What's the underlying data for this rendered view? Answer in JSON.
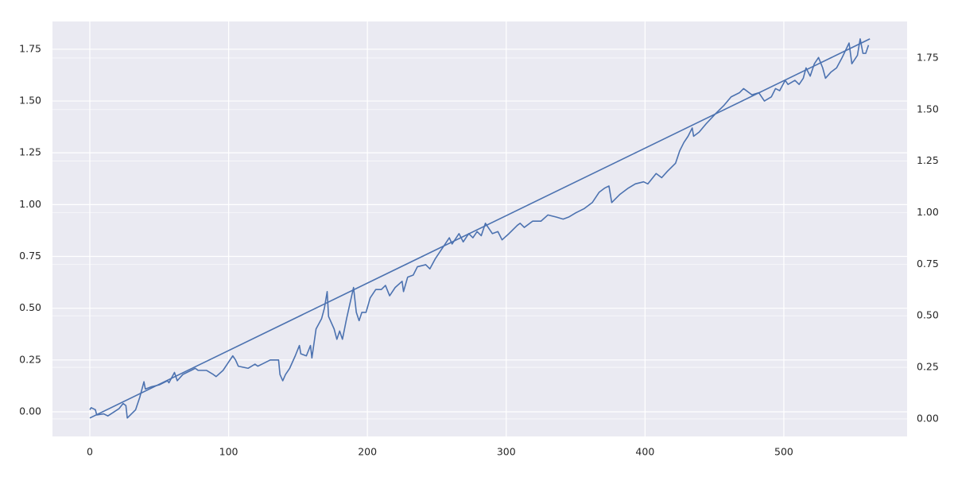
{
  "chart_data": {
    "type": "line",
    "xlim": [
      -26.9,
      588.8
    ],
    "xticks": [
      0,
      100,
      200,
      300,
      400,
      500
    ],
    "ylim": [
      -0.119,
      1.884
    ],
    "yticks": [
      {
        "value": 0,
        "label": "0.00"
      },
      {
        "value": 0.25,
        "label": "0.25"
      },
      {
        "value": 0.5,
        "label": "0.50"
      },
      {
        "value": 0.75,
        "label": "0.75"
      },
      {
        "value": 1,
        "label": "1.00"
      },
      {
        "value": 1.25,
        "label": "1.25"
      },
      {
        "value": 1.5,
        "label": "1.50"
      },
      {
        "value": 1.75,
        "label": "1.75"
      }
    ],
    "y2lim": [
      -0.085,
      1.927
    ],
    "y2ticks": [
      {
        "value": 0,
        "label": "0.00"
      },
      {
        "value": 0.25,
        "label": "0.25"
      },
      {
        "value": 0.5,
        "label": "0.50"
      },
      {
        "value": 0.75,
        "label": "0.75"
      },
      {
        "value": 1,
        "label": "1.00"
      },
      {
        "value": 1.25,
        "label": "1.25"
      },
      {
        "value": 1.5,
        "label": "1.50"
      },
      {
        "value": 1.75,
        "label": "1.75"
      }
    ],
    "grid": true,
    "series": [
      {
        "color": "#4c72b0",
        "x": [
          0,
          1,
          4,
          5,
          10,
          13,
          21,
          24,
          26,
          27,
          33,
          36,
          39,
          40,
          44,
          50,
          56,
          57,
          61,
          63,
          67,
          73,
          76,
          78,
          84,
          89,
          91,
          96,
          100,
          103,
          105,
          107,
          114,
          119,
          121,
          124,
          130,
          133,
          136,
          137,
          139,
          141,
          144,
          148,
          151,
          152,
          156,
          159,
          160,
          163,
          167,
          169,
          171,
          172,
          176,
          178,
          180,
          182,
          185,
          187,
          190,
          192,
          194,
          196,
          199,
          202,
          206,
          210,
          213,
          216,
          220,
          225,
          226,
          229,
          233,
          236,
          242,
          245,
          249,
          253,
          256,
          259,
          261,
          265,
          266,
          269,
          273,
          276,
          279,
          282,
          285,
          287,
          290,
          294,
          297,
          302,
          308,
          310,
          313,
          319,
          325,
          330,
          336,
          341,
          345,
          350,
          356,
          362,
          367,
          371,
          374,
          376,
          382,
          388,
          393,
          399,
          402,
          408,
          412,
          416,
          422,
          425,
          428,
          431,
          434,
          435,
          439,
          444,
          451,
          457,
          462,
          468,
          471,
          477,
          482,
          486,
          491,
          494,
          497,
          501,
          503,
          508,
          511,
          514,
          516,
          519,
          522,
          525,
          528,
          530,
          534,
          538,
          542,
          547,
          549,
          553,
          555,
          557,
          559,
          561
        ],
        "values": [
          0.01,
          0.02,
          0.01,
          -0.015,
          -0.01,
          -0.02,
          0.015,
          0.04,
          0.03,
          -0.03,
          0.01,
          0.07,
          0.145,
          0.11,
          0.12,
          0.13,
          0.15,
          0.14,
          0.19,
          0.15,
          0.18,
          0.2,
          0.21,
          0.2,
          0.2,
          0.18,
          0.17,
          0.2,
          0.24,
          0.27,
          0.25,
          0.22,
          0.21,
          0.23,
          0.22,
          0.23,
          0.25,
          0.25,
          0.25,
          0.18,
          0.15,
          0.18,
          0.21,
          0.27,
          0.32,
          0.28,
          0.27,
          0.32,
          0.26,
          0.4,
          0.45,
          0.5,
          0.58,
          0.46,
          0.4,
          0.35,
          0.39,
          0.35,
          0.45,
          0.51,
          0.6,
          0.48,
          0.44,
          0.48,
          0.48,
          0.55,
          0.59,
          0.59,
          0.61,
          0.56,
          0.6,
          0.63,
          0.58,
          0.65,
          0.66,
          0.7,
          0.71,
          0.69,
          0.74,
          0.78,
          0.81,
          0.84,
          0.81,
          0.85,
          0.86,
          0.82,
          0.86,
          0.84,
          0.87,
          0.85,
          0.91,
          0.89,
          0.86,
          0.87,
          0.83,
          0.86,
          0.9,
          0.91,
          0.89,
          0.92,
          0.92,
          0.95,
          0.94,
          0.93,
          0.94,
          0.96,
          0.98,
          1.01,
          1.06,
          1.08,
          1.09,
          1.01,
          1.05,
          1.08,
          1.1,
          1.11,
          1.1,
          1.15,
          1.13,
          1.16,
          1.2,
          1.26,
          1.3,
          1.33,
          1.37,
          1.33,
          1.35,
          1.39,
          1.44,
          1.48,
          1.52,
          1.54,
          1.56,
          1.53,
          1.54,
          1.5,
          1.52,
          1.56,
          1.55,
          1.6,
          1.58,
          1.6,
          1.58,
          1.61,
          1.66,
          1.62,
          1.68,
          1.71,
          1.66,
          1.61,
          1.64,
          1.66,
          1.71,
          1.78,
          1.68,
          1.72,
          1.8,
          1.73,
          1.73,
          1.77
        ]
      },
      {
        "color": "#4c72b0",
        "x": [
          0,
          562
        ],
        "values": [
          -0.03,
          1.8
        ]
      }
    ]
  }
}
